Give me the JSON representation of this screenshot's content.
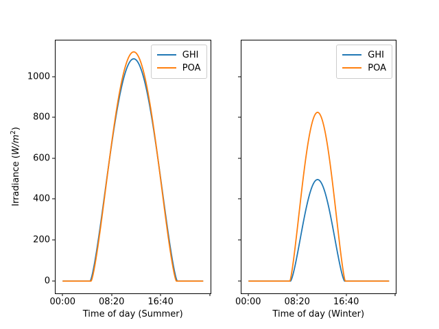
{
  "figure": {
    "background": "#ffffff"
  },
  "ylabel": {
    "prefix": "Irradiance (",
    "math_italic": "W/m",
    "superscript": "2",
    "suffix": ")"
  },
  "legend": {
    "position": "upper right",
    "entries": [
      {
        "label": "GHI",
        "color": "#1f77b4"
      },
      {
        "label": "POA",
        "color": "#ff7f0e"
      }
    ]
  },
  "axis": {
    "xlim_hours": [
      -1.196,
      25.112
    ],
    "ylim": [
      -62,
      1178
    ],
    "xticks": [
      {
        "hour": 0,
        "label": "00:00"
      },
      {
        "hour": 8.3333,
        "label": "08:20"
      },
      {
        "hour": 16.6667,
        "label": "16:40"
      },
      {
        "hour": 25.0,
        "label": ""
      }
    ],
    "yticks": [
      0,
      200,
      400,
      600,
      800,
      1000
    ],
    "grid": false
  },
  "chart_data": [
    {
      "type": "line",
      "subplot": "left",
      "xlabel": "Time of day (Summer)",
      "ylabel": "Irradiance (W/m^2)",
      "hours": [
        0,
        1,
        2,
        3,
        4,
        5,
        6,
        7,
        8,
        9,
        10,
        11,
        12,
        13,
        14,
        15,
        16,
        17,
        18,
        19,
        20,
        21,
        22,
        23,
        24
      ],
      "series": [
        {
          "name": "GHI",
          "color": "#1f77b4",
          "peak_wm2": 1088,
          "sunrise_hour": 4.7,
          "sunset_hour": 19.5,
          "shape_exponent": 1.35,
          "hourly_values": [
            0,
            0,
            0,
            0,
            0,
            26,
            188,
            391,
            601,
            793,
            947,
            1048,
            1088,
            1061,
            973,
            830,
            646,
            438,
            228,
            52,
            0,
            0,
            0,
            0,
            0
          ]
        },
        {
          "name": "POA",
          "color": "#ff7f0e",
          "peak_wm2": 1122,
          "sunrise_hour": 4.85,
          "sunset_hour": 19.35,
          "shape_exponent": 1.35,
          "hourly_values": [
            0,
            0,
            0,
            0,
            0,
            11,
            169,
            381,
            602,
            806,
            971,
            1079,
            1122,
            1093,
            998,
            843,
            645,
            428,
            210,
            34,
            0,
            0,
            0,
            0,
            0
          ]
        }
      ]
    },
    {
      "type": "line",
      "subplot": "right",
      "xlabel": "Time of day (Winter)",
      "ylabel": "Irradiance (W/m^2)",
      "hours": [
        0,
        1,
        2,
        3,
        4,
        5,
        6,
        7,
        8,
        9,
        10,
        11,
        12,
        13,
        14,
        15,
        16,
        17,
        18,
        19,
        20,
        21,
        22,
        23,
        24
      ],
      "series": [
        {
          "name": "GHI",
          "color": "#1f77b4",
          "peak_wm2": 497,
          "sunrise_hour": 7.15,
          "sunset_hour": 16.35,
          "shape_exponent": 1.4,
          "hourly_values": [
            0,
            0,
            0,
            0,
            0,
            0,
            0,
            0,
            86,
            238,
            381,
            474,
            494,
            436,
            313,
            160,
            25,
            0,
            0,
            0,
            0,
            0,
            0,
            0,
            0
          ]
        },
        {
          "name": "POA",
          "color": "#ff7f0e",
          "peak_wm2": 826,
          "sunrise_hour": 7.05,
          "sunset_hour": 16.45,
          "shape_exponent": 1.3,
          "hourly_values": [
            0,
            0,
            0,
            0,
            0,
            0,
            0,
            0,
            182,
            431,
            652,
            793,
            822,
            736,
            549,
            307,
            70,
            0,
            0,
            0,
            0,
            0,
            0,
            0,
            0
          ]
        }
      ]
    }
  ]
}
